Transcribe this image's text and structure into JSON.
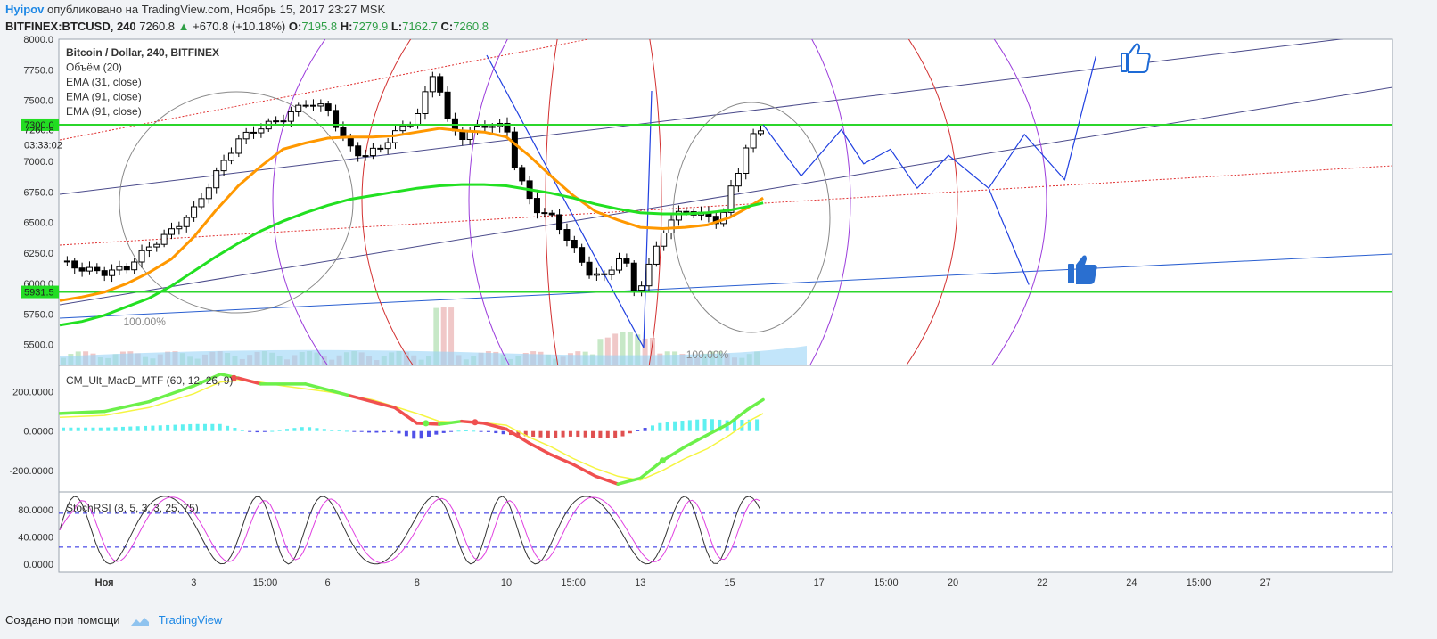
{
  "header": {
    "author": "Hyipov",
    "published": "опубликовано на TradingView.com, Ноябрь 15, 2017 23:27 MSK",
    "symbol": "BITFINEX:BTCUSD, 240",
    "last": "7260.8",
    "change": "+670.8 (+10.18%)",
    "o_label": "O:",
    "o": "7195.8",
    "h_label": "H:",
    "h": "7279.9",
    "l_label": "L:",
    "l": "7162.7",
    "c_label": "C:",
    "c": "7260.8"
  },
  "footer": {
    "made_with": "Создано при помощи",
    "brand": "TradingView"
  },
  "colors": {
    "up": "#2e9e45",
    "green_line": "#2bd62b",
    "ema_orange": "#ff9800",
    "ema_green": "#22e022",
    "macd_green": "#6cf04a",
    "macd_red": "#f05050",
    "signal_yellow": "#f5f542",
    "stoch_black": "#333333",
    "stoch_magenta": "#e040e0"
  },
  "chart_data": {
    "type": "candlestick",
    "legend": [
      "Bitcoin / Dollar, 240, BITFINEX",
      "Объём (20)",
      "EMA (31, close)",
      "EMA (91, close)",
      "EMA (91, close)"
    ],
    "price_ticks": [
      "8000.0",
      "7750.0",
      "7500.0",
      "7000.0",
      "6750.0",
      "6500.0",
      "6250.0",
      "6000.0",
      "5750.0",
      "5500.0"
    ],
    "price_tick_values": [
      8000,
      7750,
      7500,
      7000,
      6750,
      6500,
      6250,
      6000,
      5750,
      5500
    ],
    "ylim": [
      5330,
      8000
    ],
    "price_labels": [
      {
        "text": "7300.0",
        "value": 7300,
        "style": "green"
      },
      {
        "text": "7260.8",
        "value": 7260.8,
        "style": "plain"
      },
      {
        "text": "03:33:02",
        "value": 7135,
        "style": "plain"
      },
      {
        "text": "5931.5",
        "value": 5931.5,
        "style": "green"
      }
    ],
    "horizontal_levels": [
      7300,
      5931.5
    ],
    "fib_labels": [
      {
        "text": "100.00%",
        "day": 1.9,
        "price": 5660
      },
      {
        "text": "100.00%",
        "day": 14.5,
        "price": 5390
      }
    ],
    "x_ticks": [
      {
        "label": "Ноя",
        "day": 1,
        "bold": true
      },
      {
        "label": "3",
        "day": 3,
        "bold": false
      },
      {
        "label": "15:00",
        "day": 4.6,
        "bold": false
      },
      {
        "label": "6",
        "day": 6,
        "bold": false
      },
      {
        "label": "8",
        "day": 8,
        "bold": false
      },
      {
        "label": "10",
        "day": 10,
        "bold": false
      },
      {
        "label": "15:00",
        "day": 11.5,
        "bold": false
      },
      {
        "label": "13",
        "day": 13,
        "bold": false
      },
      {
        "label": "15",
        "day": 15,
        "bold": false
      },
      {
        "label": "17",
        "day": 17,
        "bold": false
      },
      {
        "label": "15:00",
        "day": 18.5,
        "bold": false
      },
      {
        "label": "20",
        "day": 20,
        "bold": false
      },
      {
        "label": "22",
        "day": 22,
        "bold": false
      },
      {
        "label": "24",
        "day": 24,
        "bold": false
      },
      {
        "label": "15:00",
        "day": 25.5,
        "bold": false
      },
      {
        "label": "27",
        "day": 27,
        "bold": false
      }
    ],
    "close_path": [
      [
        0.0,
        6180
      ],
      [
        0.5,
        6120
      ],
      [
        1.0,
        6090
      ],
      [
        1.5,
        6130
      ],
      [
        2.0,
        6300
      ],
      [
        2.5,
        6430
      ],
      [
        3.0,
        6600
      ],
      [
        3.5,
        6900
      ],
      [
        4.0,
        7180
      ],
      [
        4.5,
        7280
      ],
      [
        5.0,
        7350
      ],
      [
        5.5,
        7480
      ],
      [
        6.0,
        7430
      ],
      [
        6.4,
        7140
      ],
      [
        6.8,
        7040
      ],
      [
        7.2,
        7120
      ],
      [
        7.6,
        7260
      ],
      [
        8.0,
        7370
      ],
      [
        8.4,
        7760
      ],
      [
        8.7,
        7300
      ],
      [
        9.0,
        7200
      ],
      [
        9.5,
        7300
      ],
      [
        10.0,
        7280
      ],
      [
        10.2,
        6950
      ],
      [
        10.6,
        6620
      ],
      [
        11.0,
        6550
      ],
      [
        11.4,
        6350
      ],
      [
        11.8,
        6100
      ],
      [
        12.2,
        6050
      ],
      [
        12.6,
        6250
      ],
      [
        12.9,
        5900
      ],
      [
        13.2,
        6150
      ],
      [
        13.6,
        6500
      ],
      [
        14.0,
        6600
      ],
      [
        14.4,
        6560
      ],
      [
        14.8,
        6500
      ],
      [
        15.0,
        6750
      ],
      [
        15.2,
        6920
      ],
      [
        15.4,
        7170
      ],
      [
        15.75,
        7260.8
      ]
    ],
    "ema31_path": [
      [
        0.0,
        5860
      ],
      [
        0.5,
        5890
      ],
      [
        1.0,
        5930
      ],
      [
        1.5,
        6000
      ],
      [
        2.0,
        6090
      ],
      [
        2.5,
        6200
      ],
      [
        3.0,
        6380
      ],
      [
        3.5,
        6600
      ],
      [
        4.0,
        6800
      ],
      [
        4.5,
        6960
      ],
      [
        5.0,
        7100
      ],
      [
        5.5,
        7150
      ],
      [
        6.0,
        7190
      ],
      [
        6.5,
        7200
      ],
      [
        7.0,
        7200
      ],
      [
        7.5,
        7210
      ],
      [
        8.0,
        7240
      ],
      [
        8.5,
        7270
      ],
      [
        9.0,
        7250
      ],
      [
        9.5,
        7240
      ],
      [
        10.0,
        7200
      ],
      [
        10.5,
        7050
      ],
      [
        11.0,
        6880
      ],
      [
        11.5,
        6720
      ],
      [
        12.0,
        6590
      ],
      [
        12.5,
        6520
      ],
      [
        13.0,
        6460
      ],
      [
        13.5,
        6450
      ],
      [
        14.0,
        6460
      ],
      [
        14.5,
        6480
      ],
      [
        15.0,
        6540
      ],
      [
        15.4,
        6620
      ],
      [
        15.75,
        6700
      ]
    ],
    "ema91_path": [
      [
        0.0,
        5660
      ],
      [
        0.5,
        5690
      ],
      [
        1.0,
        5740
      ],
      [
        1.5,
        5810
      ],
      [
        2.0,
        5880
      ],
      [
        2.5,
        5980
      ],
      [
        3.0,
        6100
      ],
      [
        3.5,
        6220
      ],
      [
        4.0,
        6330
      ],
      [
        4.5,
        6430
      ],
      [
        5.0,
        6510
      ],
      [
        5.5,
        6580
      ],
      [
        6.0,
        6640
      ],
      [
        6.5,
        6690
      ],
      [
        7.0,
        6720
      ],
      [
        7.5,
        6750
      ],
      [
        8.0,
        6780
      ],
      [
        8.5,
        6800
      ],
      [
        9.0,
        6810
      ],
      [
        9.5,
        6810
      ],
      [
        10.0,
        6800
      ],
      [
        10.5,
        6770
      ],
      [
        11.0,
        6740
      ],
      [
        11.5,
        6700
      ],
      [
        12.0,
        6650
      ],
      [
        12.5,
        6610
      ],
      [
        13.0,
        6580
      ],
      [
        13.5,
        6570
      ],
      [
        14.0,
        6570
      ],
      [
        14.5,
        6580
      ],
      [
        15.0,
        6600
      ],
      [
        15.4,
        6630
      ],
      [
        15.75,
        6660
      ]
    ],
    "projection_path": [
      [
        15.75,
        7300
      ],
      [
        16.6,
        6880
      ],
      [
        17.5,
        7260
      ],
      [
        18.0,
        6980
      ],
      [
        18.6,
        7100
      ],
      [
        19.2,
        6780
      ],
      [
        19.9,
        7050
      ],
      [
        20.8,
        6780
      ],
      [
        21.6,
        7220
      ],
      [
        22.5,
        6850
      ],
      [
        23.2,
        7860
      ]
    ],
    "projection_path2": [
      [
        20.8,
        6780
      ],
      [
        21.7,
        5990
      ]
    ],
    "macd": {
      "label": "CM_Ult_MacD_MTF (60, 12, 26, 9)",
      "ticks": [
        "200.0000",
        "0.0000",
        "-200.0000"
      ],
      "tick_values": [
        200,
        0,
        -200
      ],
      "ylim": [
        -310,
        330
      ],
      "macd_path": [
        [
          0,
          90
        ],
        [
          1,
          100
        ],
        [
          2,
          150
        ],
        [
          3,
          230
        ],
        [
          3.6,
          290
        ],
        [
          4.0,
          270
        ],
        [
          4.5,
          240
        ],
        [
          5.5,
          240
        ],
        [
          6.5,
          180
        ],
        [
          7.5,
          120
        ],
        [
          8.0,
          40
        ],
        [
          8.5,
          35
        ],
        [
          9.0,
          50
        ],
        [
          9.5,
          40
        ],
        [
          10.0,
          10
        ],
        [
          10.5,
          -60
        ],
        [
          11.0,
          -120
        ],
        [
          11.5,
          -170
        ],
        [
          12.0,
          -230
        ],
        [
          12.5,
          -270
        ],
        [
          13.0,
          -240
        ],
        [
          13.5,
          -150
        ],
        [
          14.0,
          -80
        ],
        [
          14.5,
          -20
        ],
        [
          15.0,
          40
        ],
        [
          15.4,
          110
        ],
        [
          15.75,
          160
        ]
      ],
      "signal_path": [
        [
          0,
          70
        ],
        [
          1,
          80
        ],
        [
          2,
          120
        ],
        [
          3,
          190
        ],
        [
          3.6,
          250
        ],
        [
          4.2,
          260
        ],
        [
          5.0,
          230
        ],
        [
          6.0,
          200
        ],
        [
          7.0,
          160
        ],
        [
          8.0,
          90
        ],
        [
          8.5,
          50
        ],
        [
          9.0,
          45
        ],
        [
          9.6,
          40
        ],
        [
          10.0,
          30
        ],
        [
          10.5,
          -30
        ],
        [
          11.0,
          -80
        ],
        [
          11.5,
          -140
        ],
        [
          12.0,
          -190
        ],
        [
          12.5,
          -230
        ],
        [
          13.0,
          -250
        ],
        [
          13.5,
          -200
        ],
        [
          14.0,
          -140
        ],
        [
          14.5,
          -90
        ],
        [
          15.0,
          -20
        ],
        [
          15.5,
          60
        ],
        [
          15.75,
          90
        ]
      ]
    },
    "stoch": {
      "label": "StochRSI (8, 5, 3, 3, 25, 75)",
      "ticks": [
        "80.0000",
        "40.0000",
        "0.0000"
      ],
      "tick_values": [
        80,
        40,
        0
      ],
      "ylim": [
        -12,
        105
      ],
      "bands": [
        75,
        25
      ]
    }
  }
}
